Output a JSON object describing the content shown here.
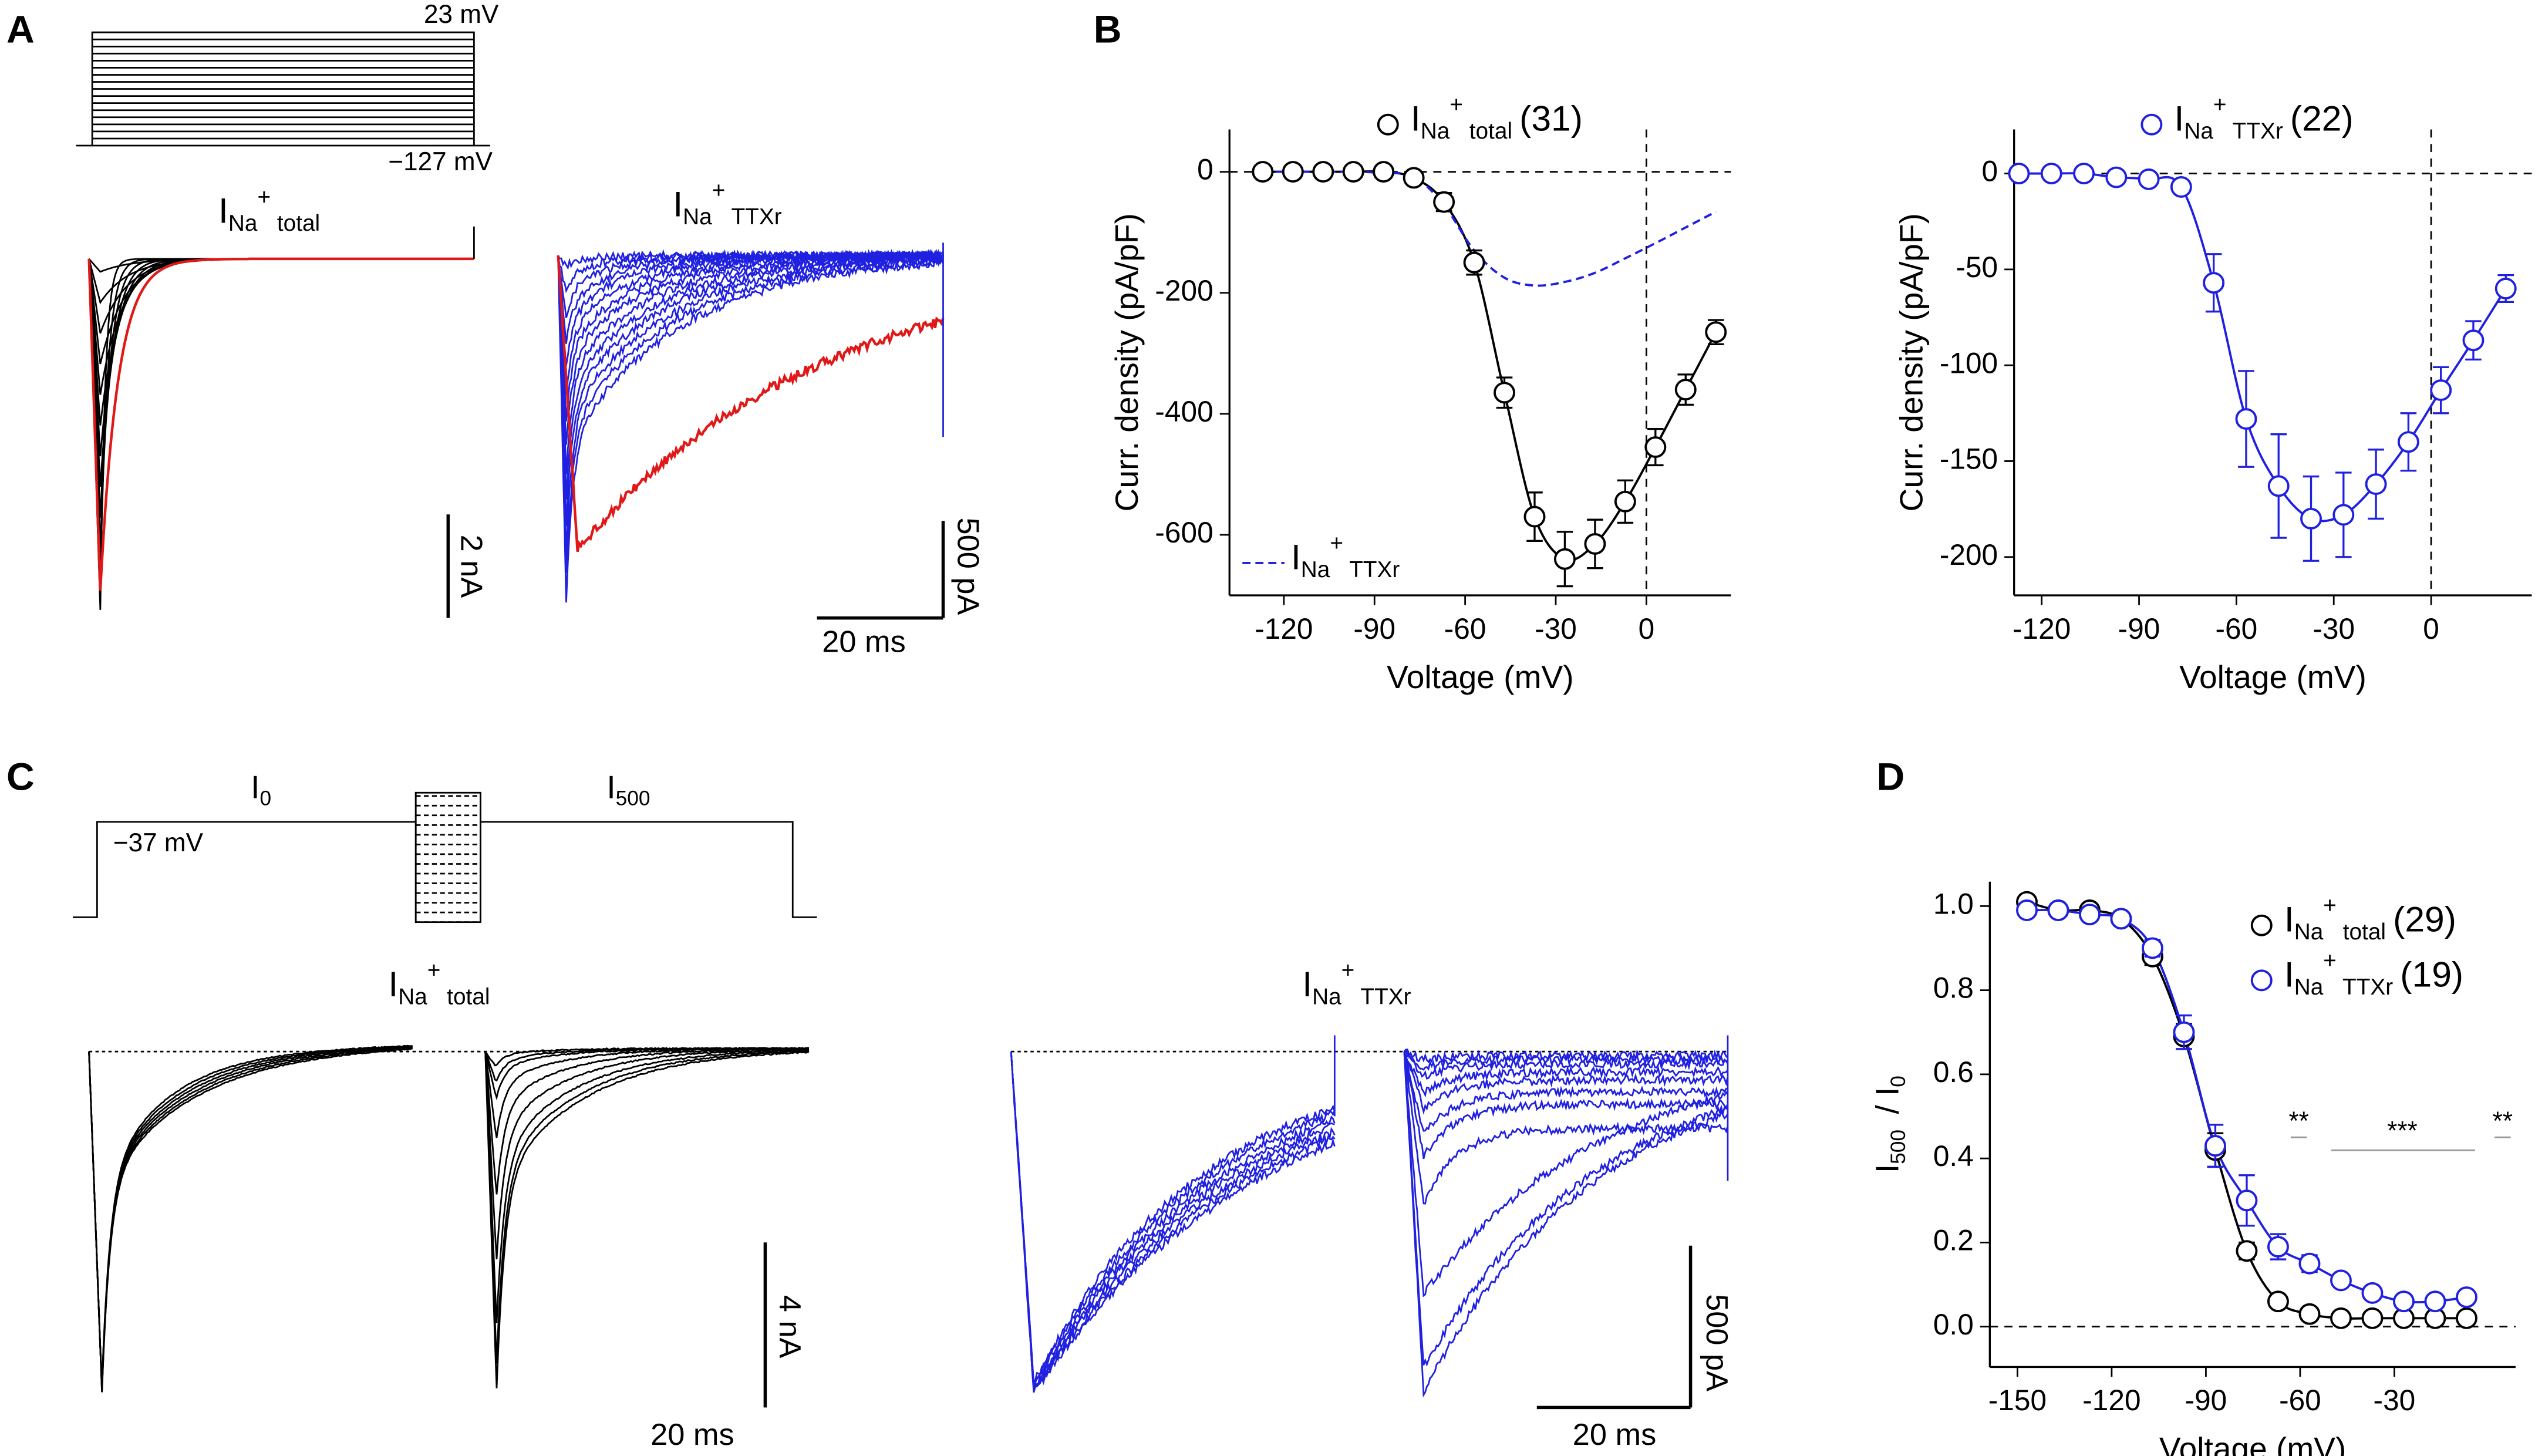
{
  "figure": {
    "panel_labels": [
      "A",
      "B",
      "C",
      "D"
    ],
    "panel_A": {
      "protocol_top": "23 mV",
      "protocol_bottom": "−127 mV",
      "total_label": [
        "I",
        "Na",
        "+",
        " total"
      ],
      "ttxr_label": [
        "I",
        "Na",
        "+",
        " TTXr"
      ],
      "scale_total_y": "2 nA",
      "scale_ttxr_y": "500 pA",
      "scale_ttxr_x": "20 ms"
    },
    "panel_C": {
      "pre_label": [
        "I",
        "0"
      ],
      "post_label": [
        "I",
        "500"
      ],
      "holding": "−37 mV",
      "total_label": [
        "I",
        "Na",
        "+",
        " total"
      ],
      "ttxr_label": [
        "I",
        "Na",
        "+",
        " TTXr"
      ],
      "scale_total_y": "4 nA",
      "scale_total_x": "20 ms",
      "scale_ttxr_y": "500 pA",
      "scale_ttxr_x": "20 ms"
    }
  },
  "chart_data": [
    {
      "type": "line",
      "xlabel": "Voltage (mV)",
      "ylabel": "Curr. density (pA/pF)",
      "x": [
        -127,
        -117,
        -107,
        -97,
        -87,
        -77,
        -67,
        -57,
        -47,
        -37,
        -27,
        -17,
        -7,
        3,
        13,
        23
      ],
      "series": [
        {
          "name": [
            "I",
            "Na",
            "+",
            " total",
            "(31)"
          ],
          "color": "#000000",
          "marker": "circle",
          "line": "solid",
          "values": [
            0,
            0,
            0,
            0,
            0,
            -10,
            -50,
            -150,
            -365,
            -570,
            -640,
            -615,
            -545,
            -455,
            -360,
            -265
          ],
          "errors": [
            0,
            0,
            0,
            0,
            0,
            5,
            15,
            20,
            25,
            40,
            45,
            40,
            35,
            30,
            25,
            20
          ]
        },
        {
          "name": [
            "I",
            "Na",
            "+",
            " TTXr"
          ],
          "color": "#2020e0",
          "line": "dashed",
          "values": [
            0,
            0,
            0,
            0,
            -2,
            -8,
            -55,
            -130,
            -175,
            -188,
            -182,
            -167,
            -143,
            -118,
            -92,
            -66
          ]
        }
      ],
      "xlim": [
        -138,
        28
      ],
      "ylim": [
        -700,
        70
      ],
      "xticks": [
        -120,
        -90,
        -60,
        -30,
        0
      ],
      "yticks": [
        0,
        -200,
        -400,
        -600
      ],
      "zero_lines": [
        "x",
        "y"
      ]
    },
    {
      "type": "line",
      "xlabel": "Voltage (mV)",
      "ylabel": "Curr. density (pA/pF)",
      "x": [
        -127,
        -117,
        -107,
        -97,
        -87,
        -77,
        -67,
        -57,
        -47,
        -37,
        -27,
        -17,
        -7,
        3,
        13,
        23
      ],
      "series": [
        {
          "name": [
            "I",
            "Na",
            "+",
            " TTXr",
            "(22)"
          ],
          "color": "#2020e0",
          "marker": "circle",
          "line": "solid",
          "values": [
            0,
            0,
            0,
            -2,
            -3,
            -7,
            -57,
            -128,
            -163,
            -180,
            -178,
            -162,
            -140,
            -113,
            -87,
            -60
          ],
          "errors": [
            0,
            0,
            0,
            1,
            1,
            2,
            15,
            25,
            27,
            22,
            22,
            18,
            15,
            12,
            10,
            7
          ]
        }
      ],
      "xlim": [
        -128.5,
        31
      ],
      "ylim": [
        -220,
        23
      ],
      "xticks": [
        -120,
        -90,
        -60,
        -30,
        0
      ],
      "yticks": [
        0,
        -50,
        -100,
        -150,
        -200
      ],
      "zero_lines": [
        "x",
        "y"
      ]
    },
    {
      "type": "line",
      "xlabel": "Voltage (mV)",
      "ylabel": [
        "I",
        "500",
        " / I",
        "0"
      ],
      "x": [
        -147,
        -137,
        -127,
        -117,
        -107,
        -97,
        -87,
        -77,
        -67,
        -57,
        -47,
        -37,
        -27,
        -17,
        -7
      ],
      "series": [
        {
          "name": [
            "I",
            "Na",
            "+",
            " total",
            "(29)"
          ],
          "color": "#000000",
          "marker": "circle",
          "line": "solid",
          "values": [
            1.01,
            0.99,
            0.99,
            0.97,
            0.88,
            0.69,
            0.42,
            0.18,
            0.06,
            0.03,
            0.02,
            0.02,
            0.02,
            0.02,
            0.02
          ],
          "errors": [
            0.01,
            0.01,
            0.01,
            0.01,
            0.02,
            0.03,
            0.04,
            0.02,
            0.01,
            0.01,
            0.01,
            0.01,
            0.01,
            0.01,
            0.01
          ]
        },
        {
          "name": [
            "I",
            "Na",
            "+",
            " TTXr",
            "(19)"
          ],
          "color": "#2020e0",
          "marker": "circle",
          "line": "solid",
          "values": [
            0.99,
            0.99,
            0.98,
            0.97,
            0.9,
            0.7,
            0.43,
            0.3,
            0.19,
            0.15,
            0.11,
            0.08,
            0.06,
            0.06,
            0.07
          ],
          "errors": [
            0.01,
            0.01,
            0.01,
            0.01,
            0.02,
            0.04,
            0.05,
            0.06,
            0.03,
            0.02,
            0.01,
            0.01,
            0.01,
            0.01,
            0.01
          ]
        }
      ],
      "xlim": [
        -158.8,
        8.6
      ],
      "ylim": [
        -0.096,
        1.058
      ],
      "xticks": [
        -150,
        -120,
        -90,
        -60,
        -30
      ],
      "yticks": [
        {
          "value": 0,
          "label": "0.0"
        },
        {
          "value": 0.2,
          "label": "0.2"
        },
        {
          "value": 0.4,
          "label": "0.4"
        },
        {
          "value": 0.6,
          "label": "0.6"
        },
        {
          "value": 0.8,
          "label": "0.8"
        },
        {
          "value": 1,
          "label": "1.0"
        }
      ],
      "zero_lines": [
        "y"
      ],
      "annotations": [
        "**",
        "***",
        "**"
      ]
    }
  ]
}
